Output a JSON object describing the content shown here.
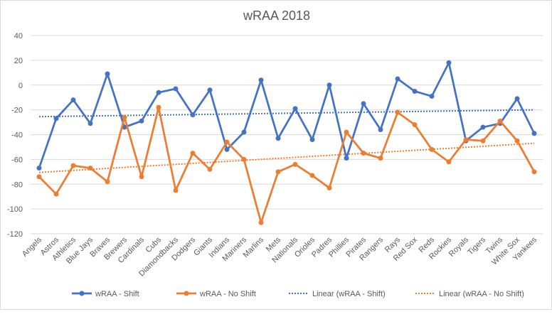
{
  "chart_data": {
    "type": "line",
    "title": "wRAA 2018",
    "xlabel": "",
    "ylabel": "",
    "ylim": [
      -120,
      40
    ],
    "yticks": [
      40,
      20,
      0,
      -20,
      -40,
      -60,
      -80,
      -100,
      -120
    ],
    "grid": true,
    "legend_position": "bottom",
    "categories": [
      "Angels",
      "Astros",
      "Athletics",
      "Blue Jays",
      "Braves",
      "Brewers",
      "Cardinals",
      "Cubs",
      "Diamondbacks",
      "Dodgers",
      "Giants",
      "Indians",
      "Mariners",
      "Marlins",
      "Mets",
      "Nationals",
      "Orioles",
      "Padres",
      "Phillies",
      "Pirates",
      "Rangers",
      "Rays",
      "Red Sox",
      "Reds",
      "Rockies",
      "Royals",
      "Tigers",
      "Twins",
      "White Sox",
      "Yankees"
    ],
    "series": [
      {
        "name": "wRAA - Shift",
        "color": "#4472c4",
        "values": [
          -67,
          -27,
          -12,
          -31,
          9,
          -34,
          -29,
          -6,
          -3,
          -24,
          -4,
          -52,
          -38,
          4,
          -43,
          -19,
          -44,
          0,
          -59,
          -15,
          -36,
          5,
          -5,
          -9,
          18,
          -45,
          -34,
          -31,
          -11,
          -39
        ]
      },
      {
        "name": "wRAA - No Shift",
        "color": "#ed7d31",
        "values": [
          -74,
          -88,
          -65,
          -67,
          -78,
          -26,
          -74,
          -18,
          -85,
          -55,
          -68,
          -46,
          -60,
          -111,
          -70,
          -64,
          -73,
          -83,
          -38,
          -55,
          -59,
          -22,
          -32,
          -52,
          -62,
          -44,
          -45,
          -29,
          -45,
          -70
        ]
      }
    ],
    "trendlines": [
      {
        "name": "Linear (wRAA - Shift)",
        "color": "#4472c4",
        "type": "linear",
        "start": -25.5,
        "end": -20
      },
      {
        "name": "Linear (wRAA - No Shift)",
        "color": "#ed7d31",
        "type": "linear",
        "start": -70.5,
        "end": -47
      }
    ]
  }
}
